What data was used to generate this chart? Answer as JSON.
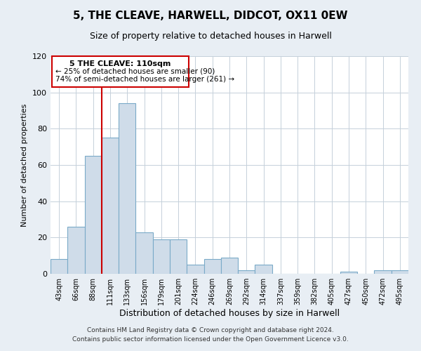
{
  "title": "5, THE CLEAVE, HARWELL, DIDCOT, OX11 0EW",
  "subtitle": "Size of property relative to detached houses in Harwell",
  "xlabel": "Distribution of detached houses by size in Harwell",
  "ylabel": "Number of detached properties",
  "bar_labels": [
    "43sqm",
    "66sqm",
    "88sqm",
    "111sqm",
    "133sqm",
    "156sqm",
    "179sqm",
    "201sqm",
    "224sqm",
    "246sqm",
    "269sqm",
    "292sqm",
    "314sqm",
    "337sqm",
    "359sqm",
    "382sqm",
    "405sqm",
    "427sqm",
    "450sqm",
    "472sqm",
    "495sqm"
  ],
  "bar_values": [
    8,
    26,
    65,
    75,
    94,
    23,
    19,
    19,
    5,
    8,
    9,
    2,
    5,
    0,
    0,
    0,
    0,
    1,
    0,
    2,
    2
  ],
  "bar_color": "#cfdce9",
  "bar_edge_color": "#7aaac8",
  "ylim": [
    0,
    120
  ],
  "yticks": [
    0,
    20,
    40,
    60,
    80,
    100,
    120
  ],
  "property_line_color": "#cc0000",
  "annotation_title": "5 THE CLEAVE: 110sqm",
  "annotation_line1": "← 25% of detached houses are smaller (90)",
  "annotation_line2": "74% of semi-detached houses are larger (261) →",
  "annotation_box_color": "#ffffff",
  "annotation_box_edge_color": "#cc0000",
  "footer_line1": "Contains HM Land Registry data © Crown copyright and database right 2024.",
  "footer_line2": "Contains public sector information licensed under the Open Government Licence v3.0.",
  "background_color": "#e8eef4",
  "plot_bg_color": "#ffffff",
  "grid_color": "#c5d0da"
}
